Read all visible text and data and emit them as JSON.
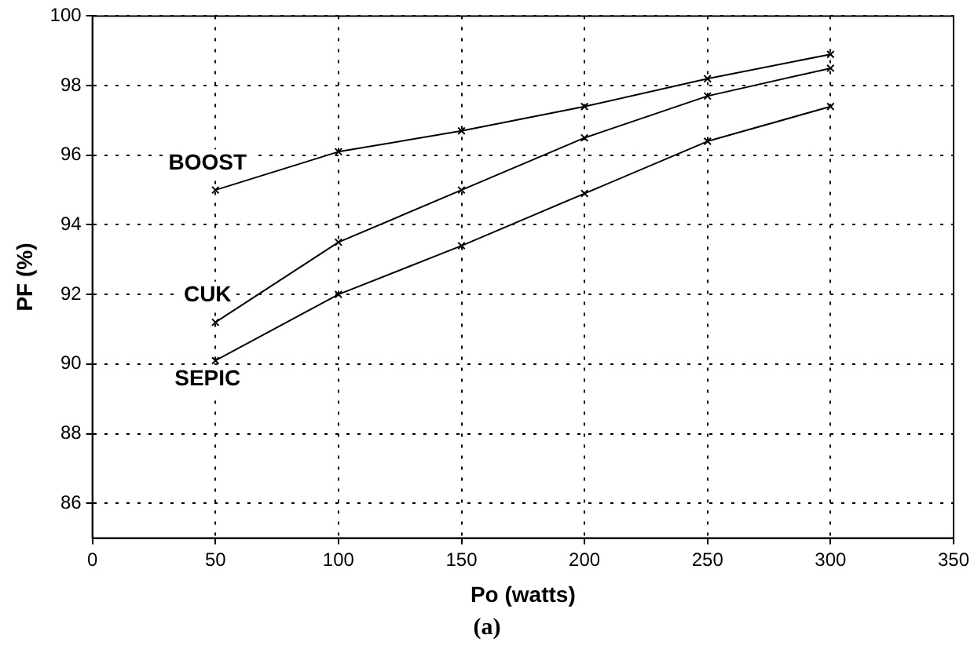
{
  "chart_data": {
    "type": "line",
    "xlabel": "Po (watts)",
    "ylabel": "PF (%)",
    "annotations": [
      "(a)"
    ],
    "x": [
      50,
      100,
      150,
      200,
      250,
      300
    ],
    "series": [
      {
        "name": "BOOST",
        "color": "#000000",
        "values": [
          95.0,
          96.1,
          96.7,
          97.4,
          98.2,
          98.9
        ]
      },
      {
        "name": "CUK",
        "color": "#000000",
        "values": [
          91.2,
          93.5,
          95.0,
          96.5,
          97.7,
          98.5
        ]
      },
      {
        "name": "SEPIC",
        "color": "#000000",
        "values": [
          90.1,
          92.0,
          93.4,
          94.9,
          96.4,
          97.4
        ]
      }
    ],
    "xlim": [
      0,
      350
    ],
    "xticks": [
      0,
      50,
      100,
      150,
      200,
      250,
      300,
      350
    ],
    "ylim": [
      85,
      100
    ],
    "yticks": [
      86,
      88,
      90,
      92,
      94,
      96,
      98,
      100
    ],
    "grid": true,
    "legend": false,
    "marker": "cross",
    "line_style": "solid"
  }
}
